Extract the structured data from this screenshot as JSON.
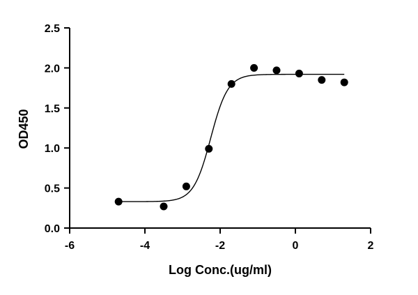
{
  "chart_data": {
    "type": "scatter",
    "xlabel": "Log Conc.(ug/ml)",
    "ylabel": "OD450",
    "xlim": [
      -6,
      2
    ],
    "ylim": [
      0,
      2.5
    ],
    "xticks": [
      "-6",
      "-4",
      "-2",
      "0",
      "2"
    ],
    "yticks": [
      "0.0",
      "0.5",
      "1.0",
      "1.5",
      "2.0",
      "2.5"
    ],
    "grid": false,
    "legend": "none",
    "series": [
      {
        "x": [
          -4.7,
          -3.5,
          -2.9,
          -2.3,
          -1.7,
          -1.1,
          -0.5,
          0.1,
          0.7,
          1.3
        ],
        "y": [
          0.33,
          0.27,
          0.52,
          0.99,
          1.8,
          2.0,
          1.97,
          1.93,
          1.85,
          1.82
        ]
      }
    ],
    "fit_curve": {
      "model": "4PL sigmoid",
      "bottom": 0.33,
      "top": 1.92,
      "logEC50": -2.25,
      "hill_slope": 1.9,
      "x_range": [
        -4.7,
        1.3
      ]
    },
    "colors": {
      "points": "#000000",
      "curve": "#000000",
      "axes": "#000000"
    }
  }
}
